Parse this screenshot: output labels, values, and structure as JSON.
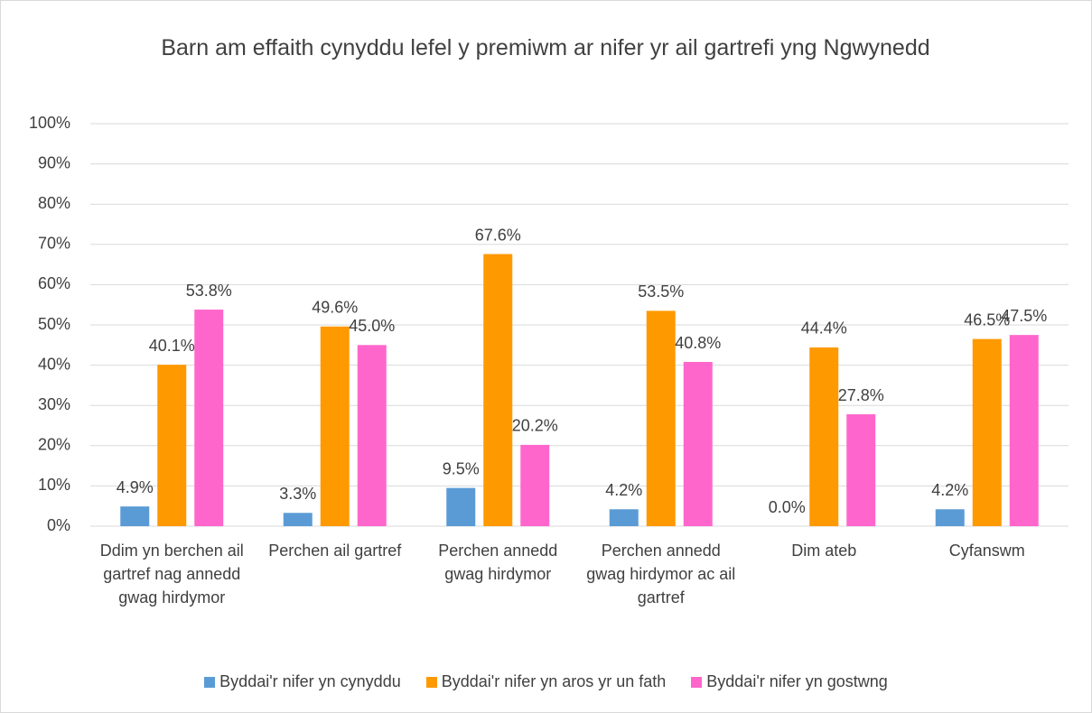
{
  "chart_data": {
    "type": "bar",
    "title": "Barn am effaith cynyddu lefel y premiwm ar nifer yr ail gartrefi yng Ngwynedd",
    "categories": [
      "Ddim yn berchen ail gartref nag annedd gwag hirdymor",
      "Perchen ail gartref",
      "Perchen annedd gwag hirdymor",
      "Perchen annedd gwag hirdymor ac ail gartref",
      "Dim ateb",
      "Cyfanswm"
    ],
    "series": [
      {
        "name": "Byddai'r nifer yn cynyddu",
        "color": "#5b9bd5",
        "values": [
          4.9,
          3.3,
          9.5,
          4.2,
          0.0,
          4.2
        ],
        "value_labels": [
          "4.9%",
          "3.3%",
          "9.5%",
          "4.2%",
          "0.0%",
          "4.2%"
        ]
      },
      {
        "name": "Byddai'r nifer yn aros yr un fath",
        "color": "#ff9900",
        "values": [
          40.1,
          49.6,
          67.6,
          53.5,
          44.4,
          46.5
        ],
        "value_labels": [
          "40.1%",
          "49.6%",
          "67.6%",
          "53.5%",
          "44.4%",
          "46.5%"
        ]
      },
      {
        "name": "Byddai'r nifer yn gostwng",
        "color": "#ff66cc",
        "values": [
          53.8,
          45.0,
          20.2,
          40.8,
          27.8,
          47.5
        ],
        "value_labels": [
          "53.8%",
          "45.0%",
          "20.2%",
          "40.8%",
          "27.8%",
          "47.5%"
        ]
      }
    ],
    "ylim": [
      0,
      100
    ],
    "yticks": [
      {
        "value": 0,
        "label": "0%"
      },
      {
        "value": 10,
        "label": "10%"
      },
      {
        "value": 20,
        "label": "20%"
      },
      {
        "value": 30,
        "label": "30%"
      },
      {
        "value": 40,
        "label": "40%"
      },
      {
        "value": 50,
        "label": "50%"
      },
      {
        "value": 60,
        "label": "60%"
      },
      {
        "value": 70,
        "label": "70%"
      },
      {
        "value": 80,
        "label": "80%"
      },
      {
        "value": 90,
        "label": "90%"
      },
      {
        "value": 100,
        "label": "100%"
      }
    ],
    "grid": true,
    "legend": "bottom"
  }
}
